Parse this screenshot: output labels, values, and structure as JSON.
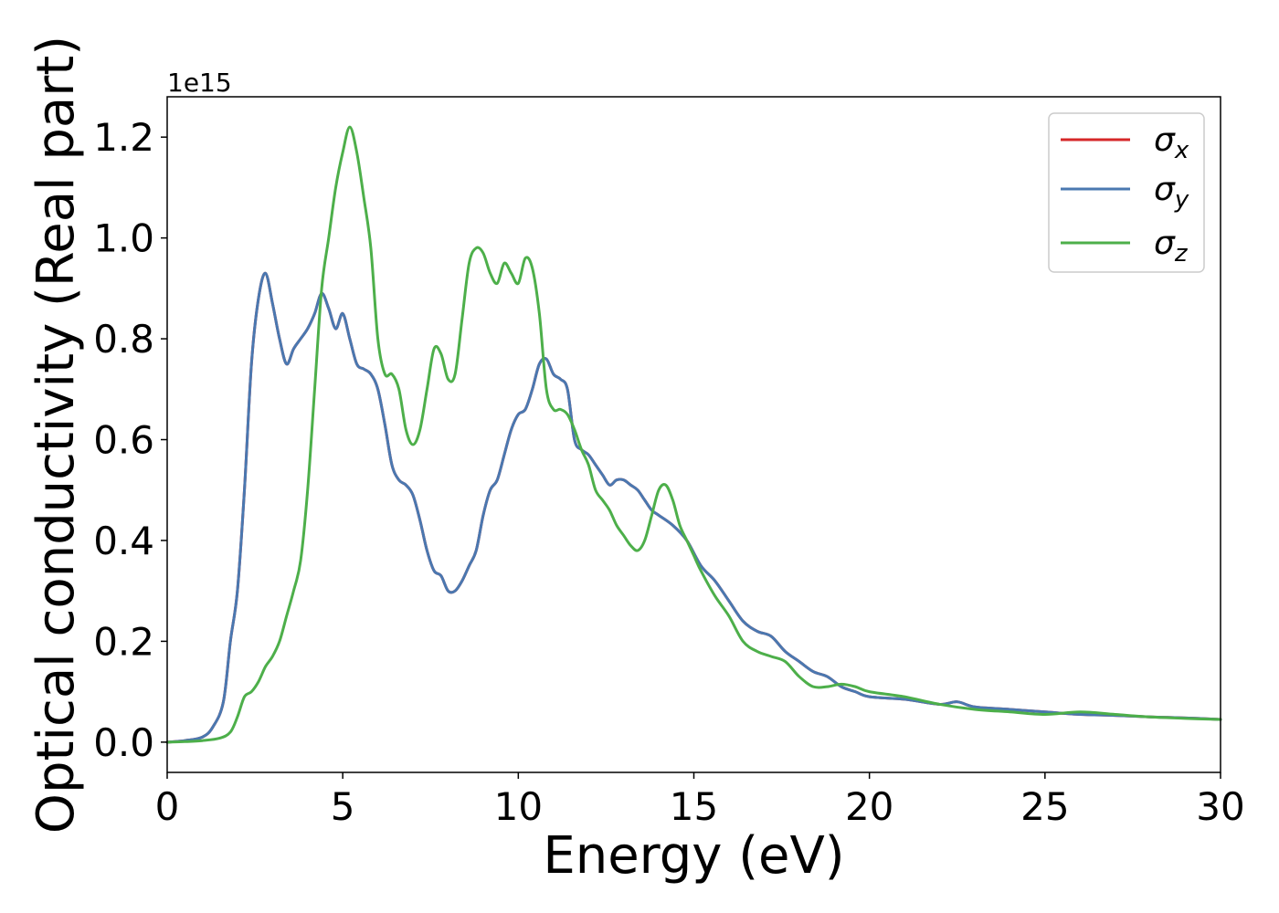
{
  "chart_data": {
    "type": "line",
    "title": "",
    "xlabel": "Energy (eV)",
    "ylabel": "Optical conductivity (Real part)",
    "y_offset_label": "1e15",
    "xlim": [
      0,
      30
    ],
    "ylim": [
      -0.06,
      1.28
    ],
    "xticks": [
      0,
      5,
      10,
      15,
      20,
      25,
      30
    ],
    "xtick_labels": [
      "0",
      "5",
      "10",
      "15",
      "20",
      "25",
      "30"
    ],
    "yticks": [
      0.0,
      0.2,
      0.4,
      0.6,
      0.8,
      1.0,
      1.2
    ],
    "ytick_labels": [
      "0.0",
      "0.2",
      "0.4",
      "0.6",
      "0.8",
      "1.0",
      "1.2"
    ],
    "grid": false,
    "legend_position": "top-right",
    "series": [
      {
        "name": "σx",
        "legend_symbol": "σ",
        "legend_subscript": "x",
        "color": "#d62728",
        "x": [
          0,
          0.5,
          1.0,
          1.3,
          1.6,
          1.8,
          2.0,
          2.2,
          2.4,
          2.6,
          2.8,
          3.0,
          3.2,
          3.4,
          3.6,
          3.8,
          4.0,
          4.2,
          4.4,
          4.6,
          4.8,
          5.0,
          5.2,
          5.4,
          5.6,
          5.8,
          6.0,
          6.2,
          6.4,
          6.6,
          6.8,
          7.0,
          7.2,
          7.4,
          7.6,
          7.8,
          8.0,
          8.2,
          8.4,
          8.6,
          8.8,
          9.0,
          9.2,
          9.4,
          9.6,
          9.8,
          10.0,
          10.2,
          10.4,
          10.6,
          10.8,
          11.0,
          11.2,
          11.4,
          11.6,
          11.8,
          12.0,
          12.2,
          12.4,
          12.6,
          12.8,
          13.0,
          13.2,
          13.4,
          13.6,
          13.8,
          14.0,
          14.4,
          14.8,
          15.2,
          15.6,
          16.0,
          16.4,
          16.8,
          17.2,
          17.6,
          18.0,
          18.4,
          18.8,
          19.2,
          19.6,
          20.0,
          21.0,
          22.0,
          22.5,
          23.0,
          24.0,
          25.0,
          26.0,
          27.0,
          28.0,
          29.0,
          30.0
        ],
        "y": [
          0.0,
          0.003,
          0.01,
          0.03,
          0.08,
          0.2,
          0.3,
          0.5,
          0.75,
          0.88,
          0.93,
          0.87,
          0.8,
          0.75,
          0.78,
          0.8,
          0.82,
          0.85,
          0.89,
          0.86,
          0.82,
          0.85,
          0.8,
          0.75,
          0.74,
          0.73,
          0.7,
          0.63,
          0.55,
          0.52,
          0.51,
          0.49,
          0.44,
          0.38,
          0.34,
          0.33,
          0.3,
          0.3,
          0.32,
          0.35,
          0.38,
          0.45,
          0.5,
          0.52,
          0.57,
          0.62,
          0.65,
          0.66,
          0.7,
          0.75,
          0.76,
          0.73,
          0.72,
          0.7,
          0.6,
          0.58,
          0.57,
          0.55,
          0.53,
          0.51,
          0.52,
          0.52,
          0.51,
          0.5,
          0.48,
          0.46,
          0.45,
          0.43,
          0.4,
          0.35,
          0.32,
          0.28,
          0.24,
          0.22,
          0.21,
          0.18,
          0.16,
          0.14,
          0.13,
          0.11,
          0.1,
          0.09,
          0.085,
          0.075,
          0.08,
          0.07,
          0.065,
          0.06,
          0.055,
          0.053,
          0.05,
          0.048,
          0.045
        ]
      },
      {
        "name": "σy",
        "legend_symbol": "σ",
        "legend_subscript": "y",
        "color": "#4a78b0",
        "x": [
          0,
          0.5,
          1.0,
          1.3,
          1.6,
          1.8,
          2.0,
          2.2,
          2.4,
          2.6,
          2.8,
          3.0,
          3.2,
          3.4,
          3.6,
          3.8,
          4.0,
          4.2,
          4.4,
          4.6,
          4.8,
          5.0,
          5.2,
          5.4,
          5.6,
          5.8,
          6.0,
          6.2,
          6.4,
          6.6,
          6.8,
          7.0,
          7.2,
          7.4,
          7.6,
          7.8,
          8.0,
          8.2,
          8.4,
          8.6,
          8.8,
          9.0,
          9.2,
          9.4,
          9.6,
          9.8,
          10.0,
          10.2,
          10.4,
          10.6,
          10.8,
          11.0,
          11.2,
          11.4,
          11.6,
          11.8,
          12.0,
          12.2,
          12.4,
          12.6,
          12.8,
          13.0,
          13.2,
          13.4,
          13.6,
          13.8,
          14.0,
          14.4,
          14.8,
          15.2,
          15.6,
          16.0,
          16.4,
          16.8,
          17.2,
          17.6,
          18.0,
          18.4,
          18.8,
          19.2,
          19.6,
          20.0,
          21.0,
          22.0,
          22.5,
          23.0,
          24.0,
          25.0,
          26.0,
          27.0,
          28.0,
          29.0,
          30.0
        ],
        "y": [
          0.0,
          0.003,
          0.01,
          0.03,
          0.08,
          0.2,
          0.3,
          0.5,
          0.75,
          0.88,
          0.93,
          0.87,
          0.8,
          0.75,
          0.78,
          0.8,
          0.82,
          0.85,
          0.89,
          0.86,
          0.82,
          0.85,
          0.8,
          0.75,
          0.74,
          0.73,
          0.7,
          0.63,
          0.55,
          0.52,
          0.51,
          0.49,
          0.44,
          0.38,
          0.34,
          0.33,
          0.3,
          0.3,
          0.32,
          0.35,
          0.38,
          0.45,
          0.5,
          0.52,
          0.57,
          0.62,
          0.65,
          0.66,
          0.7,
          0.75,
          0.76,
          0.73,
          0.72,
          0.7,
          0.6,
          0.58,
          0.57,
          0.55,
          0.53,
          0.51,
          0.52,
          0.52,
          0.51,
          0.5,
          0.48,
          0.46,
          0.45,
          0.43,
          0.4,
          0.35,
          0.32,
          0.28,
          0.24,
          0.22,
          0.21,
          0.18,
          0.16,
          0.14,
          0.13,
          0.11,
          0.1,
          0.09,
          0.085,
          0.075,
          0.08,
          0.07,
          0.065,
          0.06,
          0.055,
          0.053,
          0.05,
          0.048,
          0.045
        ]
      },
      {
        "name": "σz",
        "legend_symbol": "σ",
        "legend_subscript": "z",
        "color": "#4daf4a",
        "x": [
          0,
          0.5,
          1.0,
          1.5,
          1.8,
          2.0,
          2.2,
          2.4,
          2.6,
          2.8,
          3.0,
          3.2,
          3.4,
          3.6,
          3.8,
          4.0,
          4.2,
          4.4,
          4.6,
          4.8,
          5.0,
          5.2,
          5.4,
          5.6,
          5.8,
          6.0,
          6.2,
          6.4,
          6.6,
          6.8,
          7.0,
          7.2,
          7.4,
          7.6,
          7.8,
          8.0,
          8.2,
          8.4,
          8.6,
          8.8,
          9.0,
          9.2,
          9.4,
          9.6,
          9.8,
          10.0,
          10.2,
          10.4,
          10.6,
          10.8,
          11.0,
          11.2,
          11.4,
          11.6,
          11.8,
          12.0,
          12.2,
          12.4,
          12.6,
          12.8,
          13.0,
          13.2,
          13.4,
          13.6,
          13.8,
          14.0,
          14.2,
          14.4,
          14.6,
          14.8,
          15.0,
          15.2,
          15.6,
          16.0,
          16.4,
          16.8,
          17.2,
          17.6,
          18.0,
          18.4,
          18.8,
          19.2,
          19.6,
          20.0,
          21.0,
          22.0,
          23.0,
          24.0,
          25.0,
          26.0,
          27.0,
          28.0,
          29.0,
          30.0
        ],
        "y": [
          0.0,
          0.001,
          0.003,
          0.008,
          0.02,
          0.05,
          0.09,
          0.1,
          0.12,
          0.15,
          0.17,
          0.2,
          0.25,
          0.3,
          0.36,
          0.5,
          0.7,
          0.9,
          1.0,
          1.1,
          1.17,
          1.22,
          1.17,
          1.08,
          0.98,
          0.8,
          0.73,
          0.73,
          0.7,
          0.62,
          0.59,
          0.62,
          0.7,
          0.78,
          0.77,
          0.72,
          0.73,
          0.84,
          0.95,
          0.98,
          0.97,
          0.93,
          0.91,
          0.95,
          0.93,
          0.91,
          0.96,
          0.94,
          0.85,
          0.7,
          0.66,
          0.66,
          0.65,
          0.62,
          0.58,
          0.55,
          0.5,
          0.48,
          0.46,
          0.43,
          0.41,
          0.39,
          0.38,
          0.4,
          0.45,
          0.5,
          0.51,
          0.48,
          0.43,
          0.4,
          0.37,
          0.34,
          0.29,
          0.25,
          0.2,
          0.18,
          0.17,
          0.16,
          0.13,
          0.11,
          0.11,
          0.115,
          0.11,
          0.1,
          0.09,
          0.075,
          0.065,
          0.06,
          0.055,
          0.06,
          0.055,
          0.05,
          0.047,
          0.045
        ]
      }
    ]
  }
}
